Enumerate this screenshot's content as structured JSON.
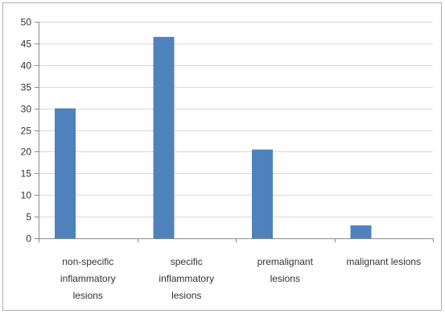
{
  "chart_data": {
    "type": "bar",
    "title": "",
    "xlabel": "",
    "ylabel": "",
    "ylim": [
      0,
      50
    ],
    "ytick_step": 5,
    "grid": true,
    "legend": "none",
    "categories": [
      "non-specific inflammatory lesions",
      "specific inflammatory lesions",
      "premalignant lesions",
      "malignant lesions"
    ],
    "category_label_lines": [
      [
        "non-specific",
        "inflammatory",
        "lesions"
      ],
      [
        "specific",
        "inflammatory",
        "lesions"
      ],
      [
        "premalignant",
        "lesions"
      ],
      [
        "malignant lesions"
      ]
    ],
    "series": [
      {
        "values": [
          30,
          46.5,
          20.5,
          3
        ],
        "color": "#4f81bd"
      }
    ]
  }
}
